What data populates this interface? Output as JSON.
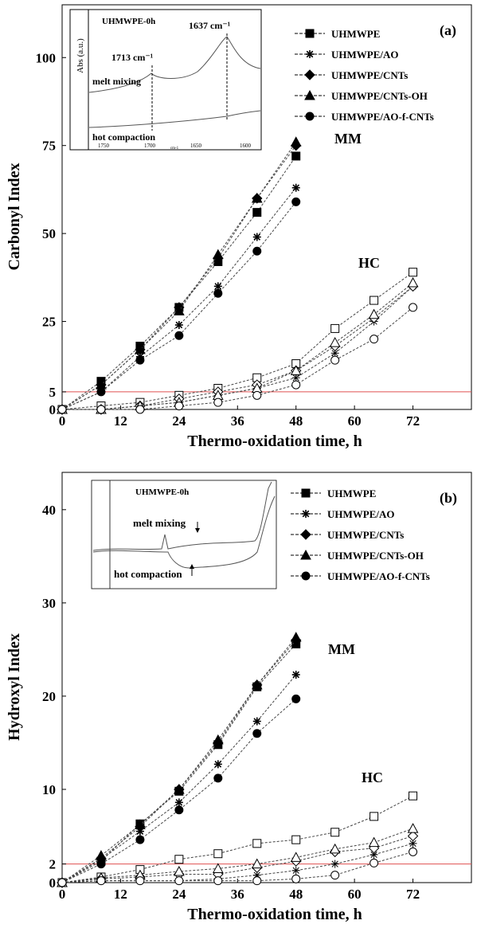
{
  "chart_data": [
    {
      "type": "line",
      "panel_label": "(a)",
      "ylabel": "Carbonyl Index",
      "xlabel": "Thermo-oxidation time, h",
      "x_ticks": [
        "0",
        "12",
        "24",
        "36",
        "48",
        "60",
        "72"
      ],
      "y_ticks": [
        "0",
        "5",
        "25",
        "50",
        "75",
        "100"
      ],
      "xlim": [
        0,
        84
      ],
      "ylim": [
        0,
        115
      ],
      "reference_line": 5,
      "group_labels": {
        "mm": "MM",
        "hc": "HC"
      },
      "legend": [
        "UHMWPE",
        "UHMWPE/AO",
        "UHMWPE/CNTs",
        "UHMWPE/CNTs-OH",
        "UHMWPE/AO-f-CNTs"
      ],
      "inset": {
        "title": "UHMWPE-0h",
        "ylabel": "Abs (a.u.)",
        "xlabel": "cm-1",
        "peak1": "1713 cm⁻¹",
        "peak2": "1637 cm⁻¹",
        "curve1": "melt mixing",
        "curve2": "hot compaction",
        "x_ticks": [
          "1750",
          "1700",
          "1650",
          "1600"
        ]
      },
      "series": [
        {
          "name": "UHMWPE",
          "group": "MM",
          "marker": "square",
          "filled": true,
          "x": [
            0,
            8,
            16,
            24,
            32,
            40,
            48
          ],
          "y": [
            0,
            8,
            18,
            29,
            42,
            56,
            72
          ]
        },
        {
          "name": "UHMWPE/AO",
          "group": "MM",
          "marker": "star",
          "filled": true,
          "x": [
            0,
            8,
            16,
            24,
            32,
            40,
            48
          ],
          "y": [
            0,
            5,
            15,
            24,
            35,
            49,
            63
          ]
        },
        {
          "name": "UHMWPE/CNTs",
          "group": "MM",
          "marker": "diamond",
          "filled": true,
          "x": [
            0,
            8,
            16,
            24,
            32,
            40,
            48
          ],
          "y": [
            0,
            7,
            17,
            29,
            43,
            60,
            75
          ]
        },
        {
          "name": "UHMWPE/CNTs-OH",
          "group": "MM",
          "marker": "triangle",
          "filled": true,
          "x": [
            0,
            8,
            16,
            24,
            32,
            40,
            48
          ],
          "y": [
            0,
            7,
            17,
            28,
            44,
            60,
            76
          ]
        },
        {
          "name": "UHMWPE/AO-f-CNTs",
          "group": "MM",
          "marker": "circle",
          "filled": true,
          "x": [
            0,
            8,
            16,
            24,
            32,
            40,
            48
          ],
          "y": [
            0,
            5,
            14,
            21,
            33,
            45,
            59
          ]
        },
        {
          "name": "UHMWPE",
          "group": "HC",
          "marker": "square",
          "filled": false,
          "x": [
            0,
            8,
            16,
            24,
            32,
            40,
            48,
            56,
            64,
            72
          ],
          "y": [
            0,
            1,
            2,
            4,
            6,
            9,
            13,
            23,
            31,
            39
          ]
        },
        {
          "name": "UHMWPE/AO",
          "group": "HC",
          "marker": "star",
          "filled": false,
          "x": [
            0,
            8,
            16,
            24,
            32,
            40,
            48,
            56,
            64,
            72
          ],
          "y": [
            0,
            0,
            1,
            2,
            4,
            6,
            9,
            16,
            25,
            35
          ]
        },
        {
          "name": "UHMWPE/CNTs",
          "group": "HC",
          "marker": "diamond",
          "filled": false,
          "x": [
            0,
            8,
            16,
            24,
            32,
            40,
            48,
            56,
            64,
            72
          ],
          "y": [
            0,
            0,
            1,
            3,
            5,
            7,
            11,
            18,
            26,
            35
          ]
        },
        {
          "name": "UHMWPE/CNTs-OH",
          "group": "HC",
          "marker": "triangle",
          "filled": false,
          "x": [
            0,
            8,
            16,
            24,
            32,
            40,
            48,
            56,
            64,
            72
          ],
          "y": [
            0,
            0,
            1,
            2,
            4,
            6,
            11,
            19,
            27,
            36
          ]
        },
        {
          "name": "UHMWPE/AO-f-CNTs",
          "group": "HC",
          "marker": "circle",
          "filled": false,
          "x": [
            0,
            8,
            16,
            24,
            32,
            40,
            48,
            56,
            64,
            72
          ],
          "y": [
            0,
            0,
            0,
            1,
            2,
            4,
            7,
            14,
            20,
            29
          ]
        }
      ]
    },
    {
      "type": "line",
      "panel_label": "(b)",
      "ylabel": "Hydroxyl Index",
      "xlabel": "Thermo-oxidation time, h",
      "x_ticks": [
        "0",
        "12",
        "24",
        "36",
        "48",
        "60",
        "72"
      ],
      "y_ticks": [
        "0",
        "2",
        "10",
        "20",
        "30",
        "40"
      ],
      "xlim": [
        0,
        84
      ],
      "ylim": [
        0,
        44
      ],
      "reference_line": 2,
      "group_labels": {
        "mm": "MM",
        "hc": "HC"
      },
      "legend": [
        "UHMWPE",
        "UHMWPE/AO",
        "UHMWPE/CNTs",
        "UHMWPE/CNTs-OH",
        "UHMWPE/AO-f-CNTs"
      ],
      "inset": {
        "title": "UHMWPE-0h",
        "curve1": "melt mixing",
        "curve2": "hot compaction"
      },
      "series": [
        {
          "name": "UHMWPE",
          "group": "MM",
          "marker": "square",
          "filled": true,
          "x": [
            0,
            8,
            16,
            24,
            32,
            40,
            48
          ],
          "y": [
            0,
            2.3,
            6.3,
            9.8,
            14.8,
            21,
            25.6
          ]
        },
        {
          "name": "UHMWPE/AO",
          "group": "MM",
          "marker": "star",
          "filled": true,
          "x": [
            0,
            8,
            16,
            24,
            32,
            40,
            48
          ],
          "y": [
            0,
            2.5,
            5.5,
            8.6,
            12.7,
            17.3,
            22.3
          ]
        },
        {
          "name": "UHMWPE/CNTs",
          "group": "MM",
          "marker": "diamond",
          "filled": true,
          "x": [
            0,
            8,
            16,
            24,
            32,
            40,
            48
          ],
          "y": [
            0,
            2.6,
            6,
            10,
            15,
            21.2,
            26
          ]
        },
        {
          "name": "UHMWPE/CNTs-OH",
          "group": "MM",
          "marker": "triangle",
          "filled": true,
          "x": [
            0,
            8,
            16,
            24,
            32,
            40,
            48
          ],
          "y": [
            0,
            2.9,
            6.2,
            10,
            15.3,
            21.2,
            26.3
          ]
        },
        {
          "name": "UHMWPE/AO-f-CNTs",
          "group": "MM",
          "marker": "circle",
          "filled": true,
          "x": [
            0,
            8,
            16,
            24,
            32,
            40,
            48
          ],
          "y": [
            0,
            2,
            4.6,
            7.8,
            11.2,
            16,
            19.7
          ]
        },
        {
          "name": "UHMWPE",
          "group": "HC",
          "marker": "square",
          "filled": false,
          "x": [
            0,
            8,
            16,
            24,
            32,
            40,
            48,
            56,
            64,
            72
          ],
          "y": [
            0,
            0.6,
            1.4,
            2.5,
            3.1,
            4.2,
            4.6,
            5.4,
            7.1,
            9.3
          ]
        },
        {
          "name": "UHMWPE/AO",
          "group": "HC",
          "marker": "star",
          "filled": false,
          "x": [
            0,
            8,
            16,
            24,
            32,
            40,
            48,
            56,
            64,
            72
          ],
          "y": [
            0,
            0.2,
            0.2,
            0.2,
            0.4,
            0.8,
            1.3,
            2,
            3,
            4.2
          ]
        },
        {
          "name": "UHMWPE/CNTs",
          "group": "HC",
          "marker": "diamond",
          "filled": false,
          "x": [
            0,
            8,
            16,
            24,
            32,
            40,
            48,
            56,
            64,
            72
          ],
          "y": [
            0,
            0.4,
            0.6,
            0.9,
            0.9,
            1.6,
            2.3,
            3.3,
            3.7,
            5
          ]
        },
        {
          "name": "UHMWPE/CNTs-OH",
          "group": "HC",
          "marker": "triangle",
          "filled": false,
          "x": [
            0,
            8,
            16,
            24,
            32,
            40,
            48,
            56,
            64,
            72
          ],
          "y": [
            0,
            0.5,
            0.8,
            1.2,
            1.5,
            2,
            2.7,
            3.6,
            4.3,
            5.8
          ]
        },
        {
          "name": "UHMWPE/AO-f-CNTs",
          "group": "HC",
          "marker": "circle",
          "filled": false,
          "x": [
            0,
            8,
            16,
            24,
            32,
            40,
            48,
            56,
            64,
            72
          ],
          "y": [
            0,
            0.2,
            0.2,
            0.2,
            0.2,
            0.2,
            0.4,
            0.8,
            2.1,
            3.3
          ]
        }
      ]
    }
  ]
}
